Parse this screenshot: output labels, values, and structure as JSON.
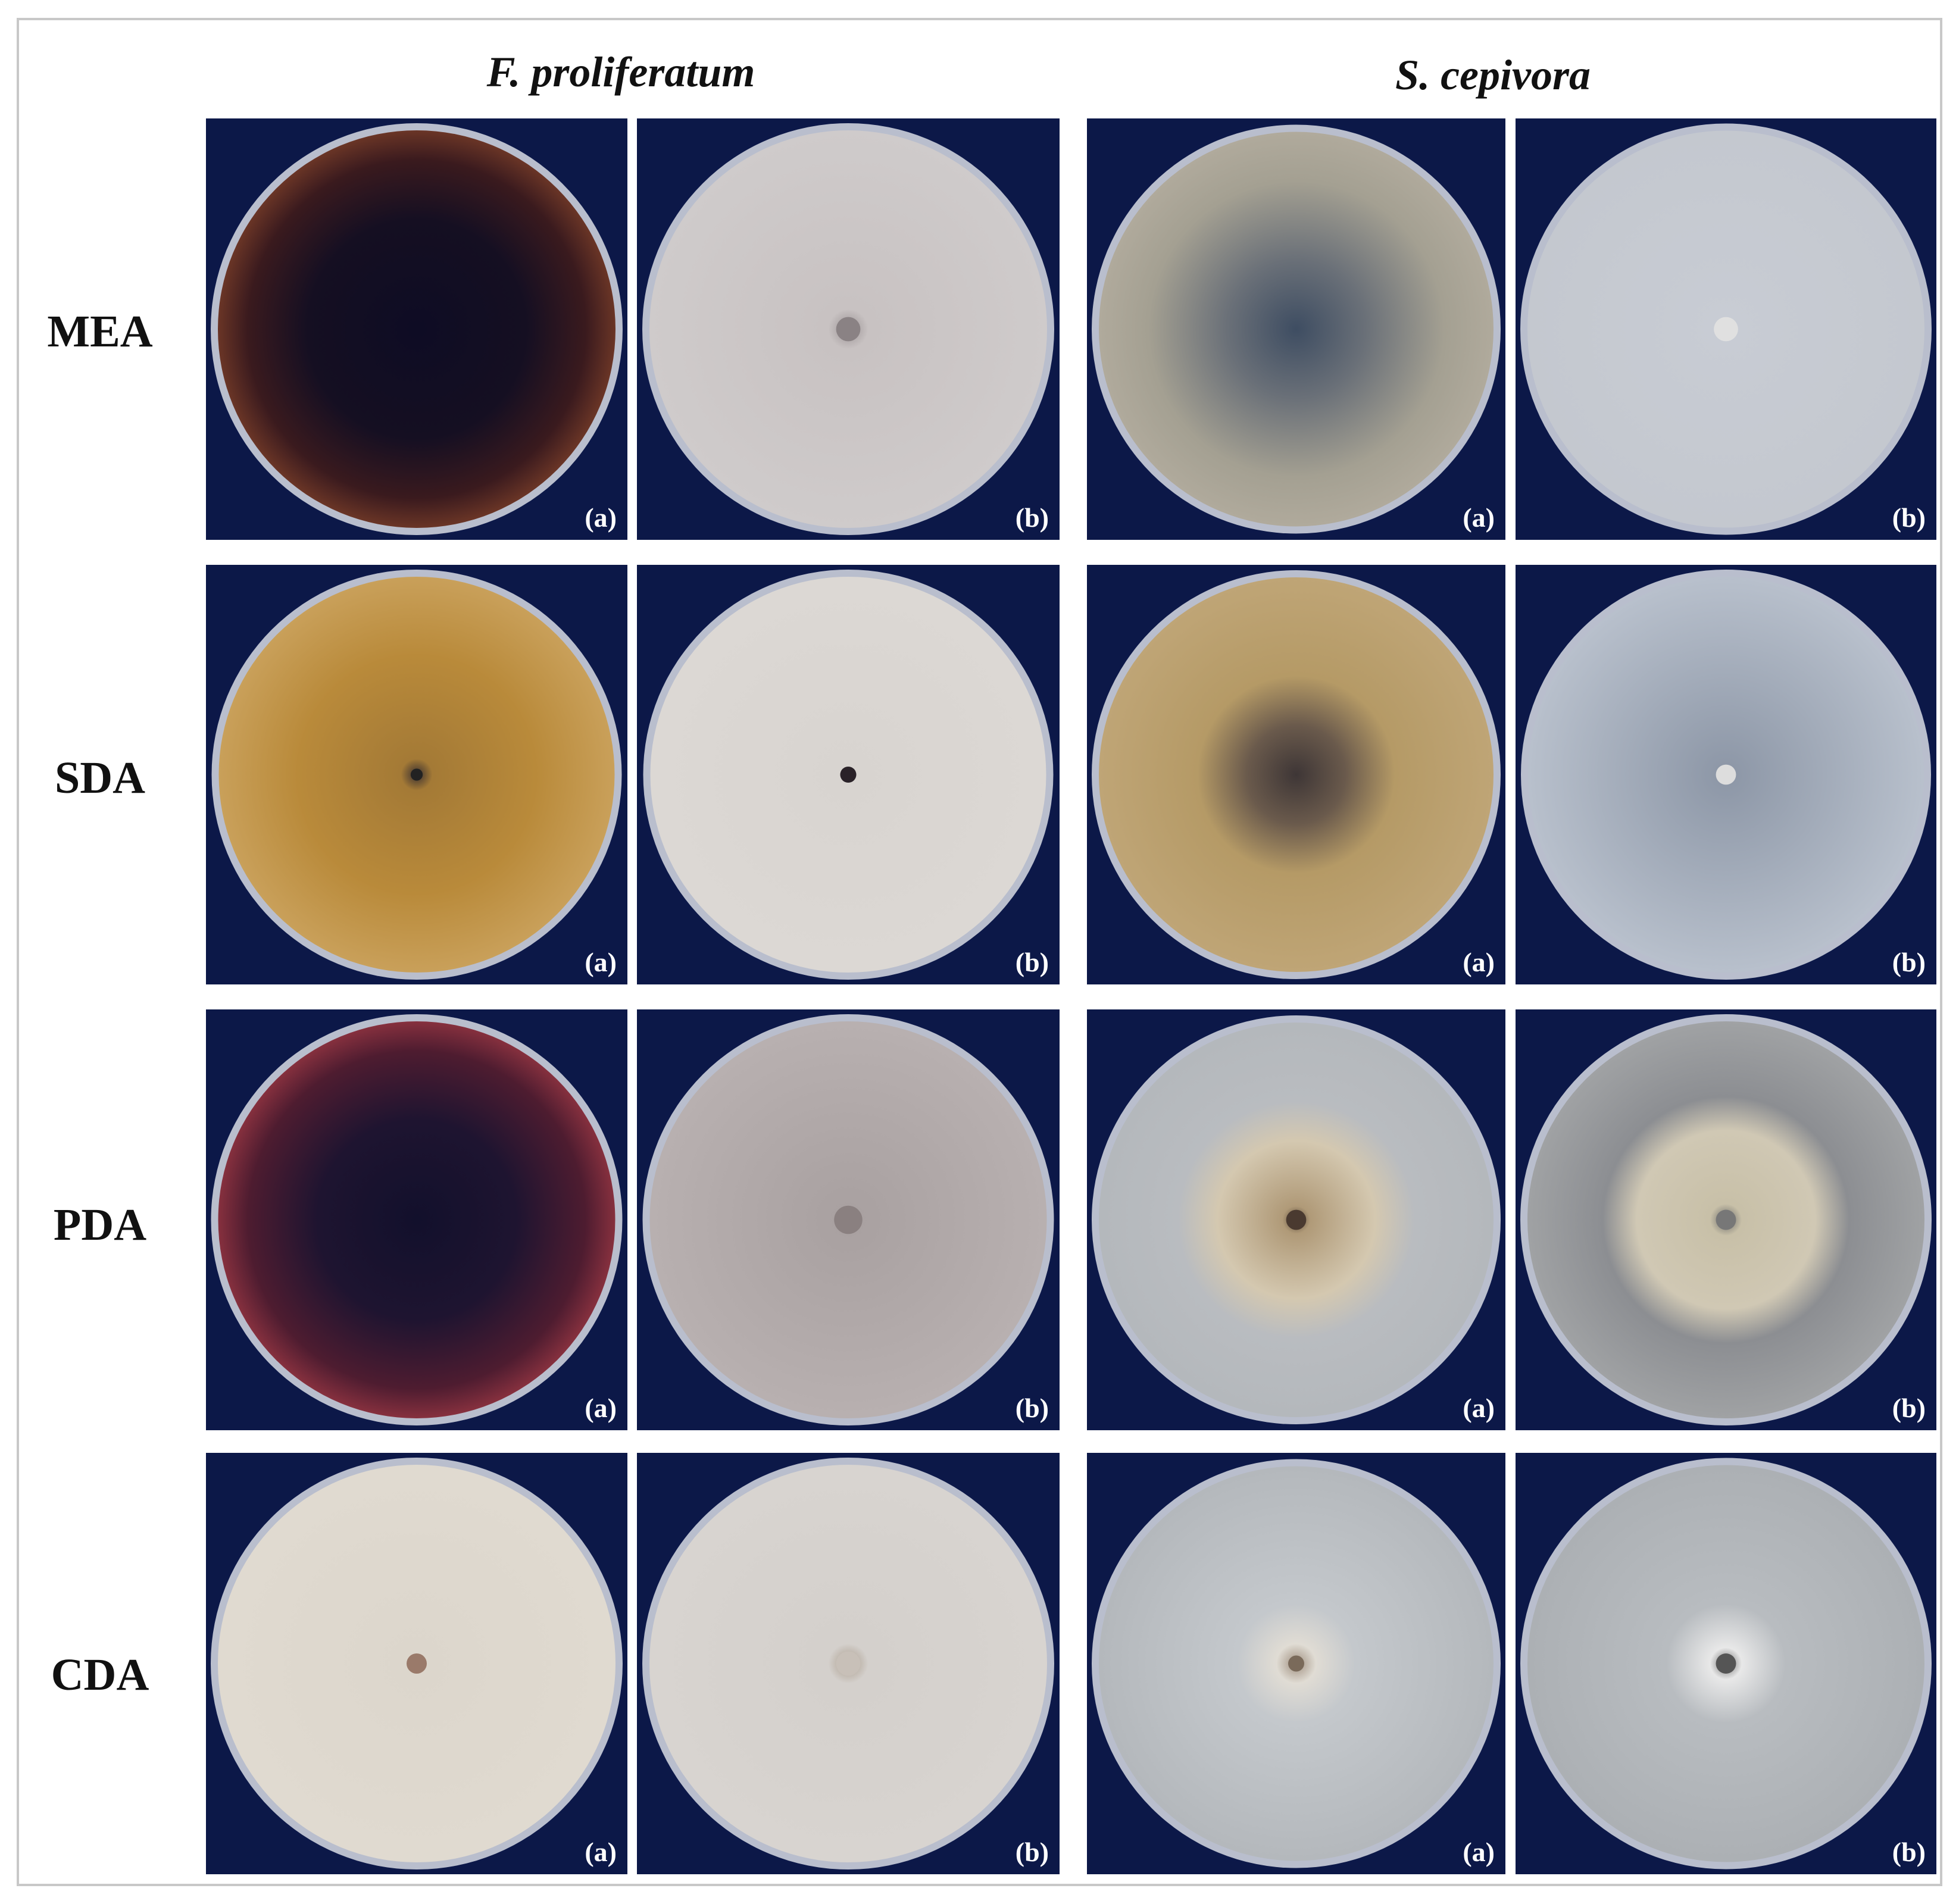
{
  "columns": [
    "F. proliferatum",
    "S. cepivora"
  ],
  "rows": [
    {
      "label": "MEA",
      "panels": [
        "(a)",
        "(b)",
        "(a)",
        "(b)"
      ]
    },
    {
      "label": "SDA",
      "panels": [
        "(a)",
        "(b)",
        "(a)",
        "(b)"
      ]
    },
    {
      "label": "PDA",
      "panels": [
        "(a)",
        "(b)",
        "(a)",
        "(b)"
      ]
    },
    {
      "label": "CDA",
      "panels": [
        "(a)",
        "(b)",
        "(a)",
        "(b)"
      ]
    }
  ]
}
